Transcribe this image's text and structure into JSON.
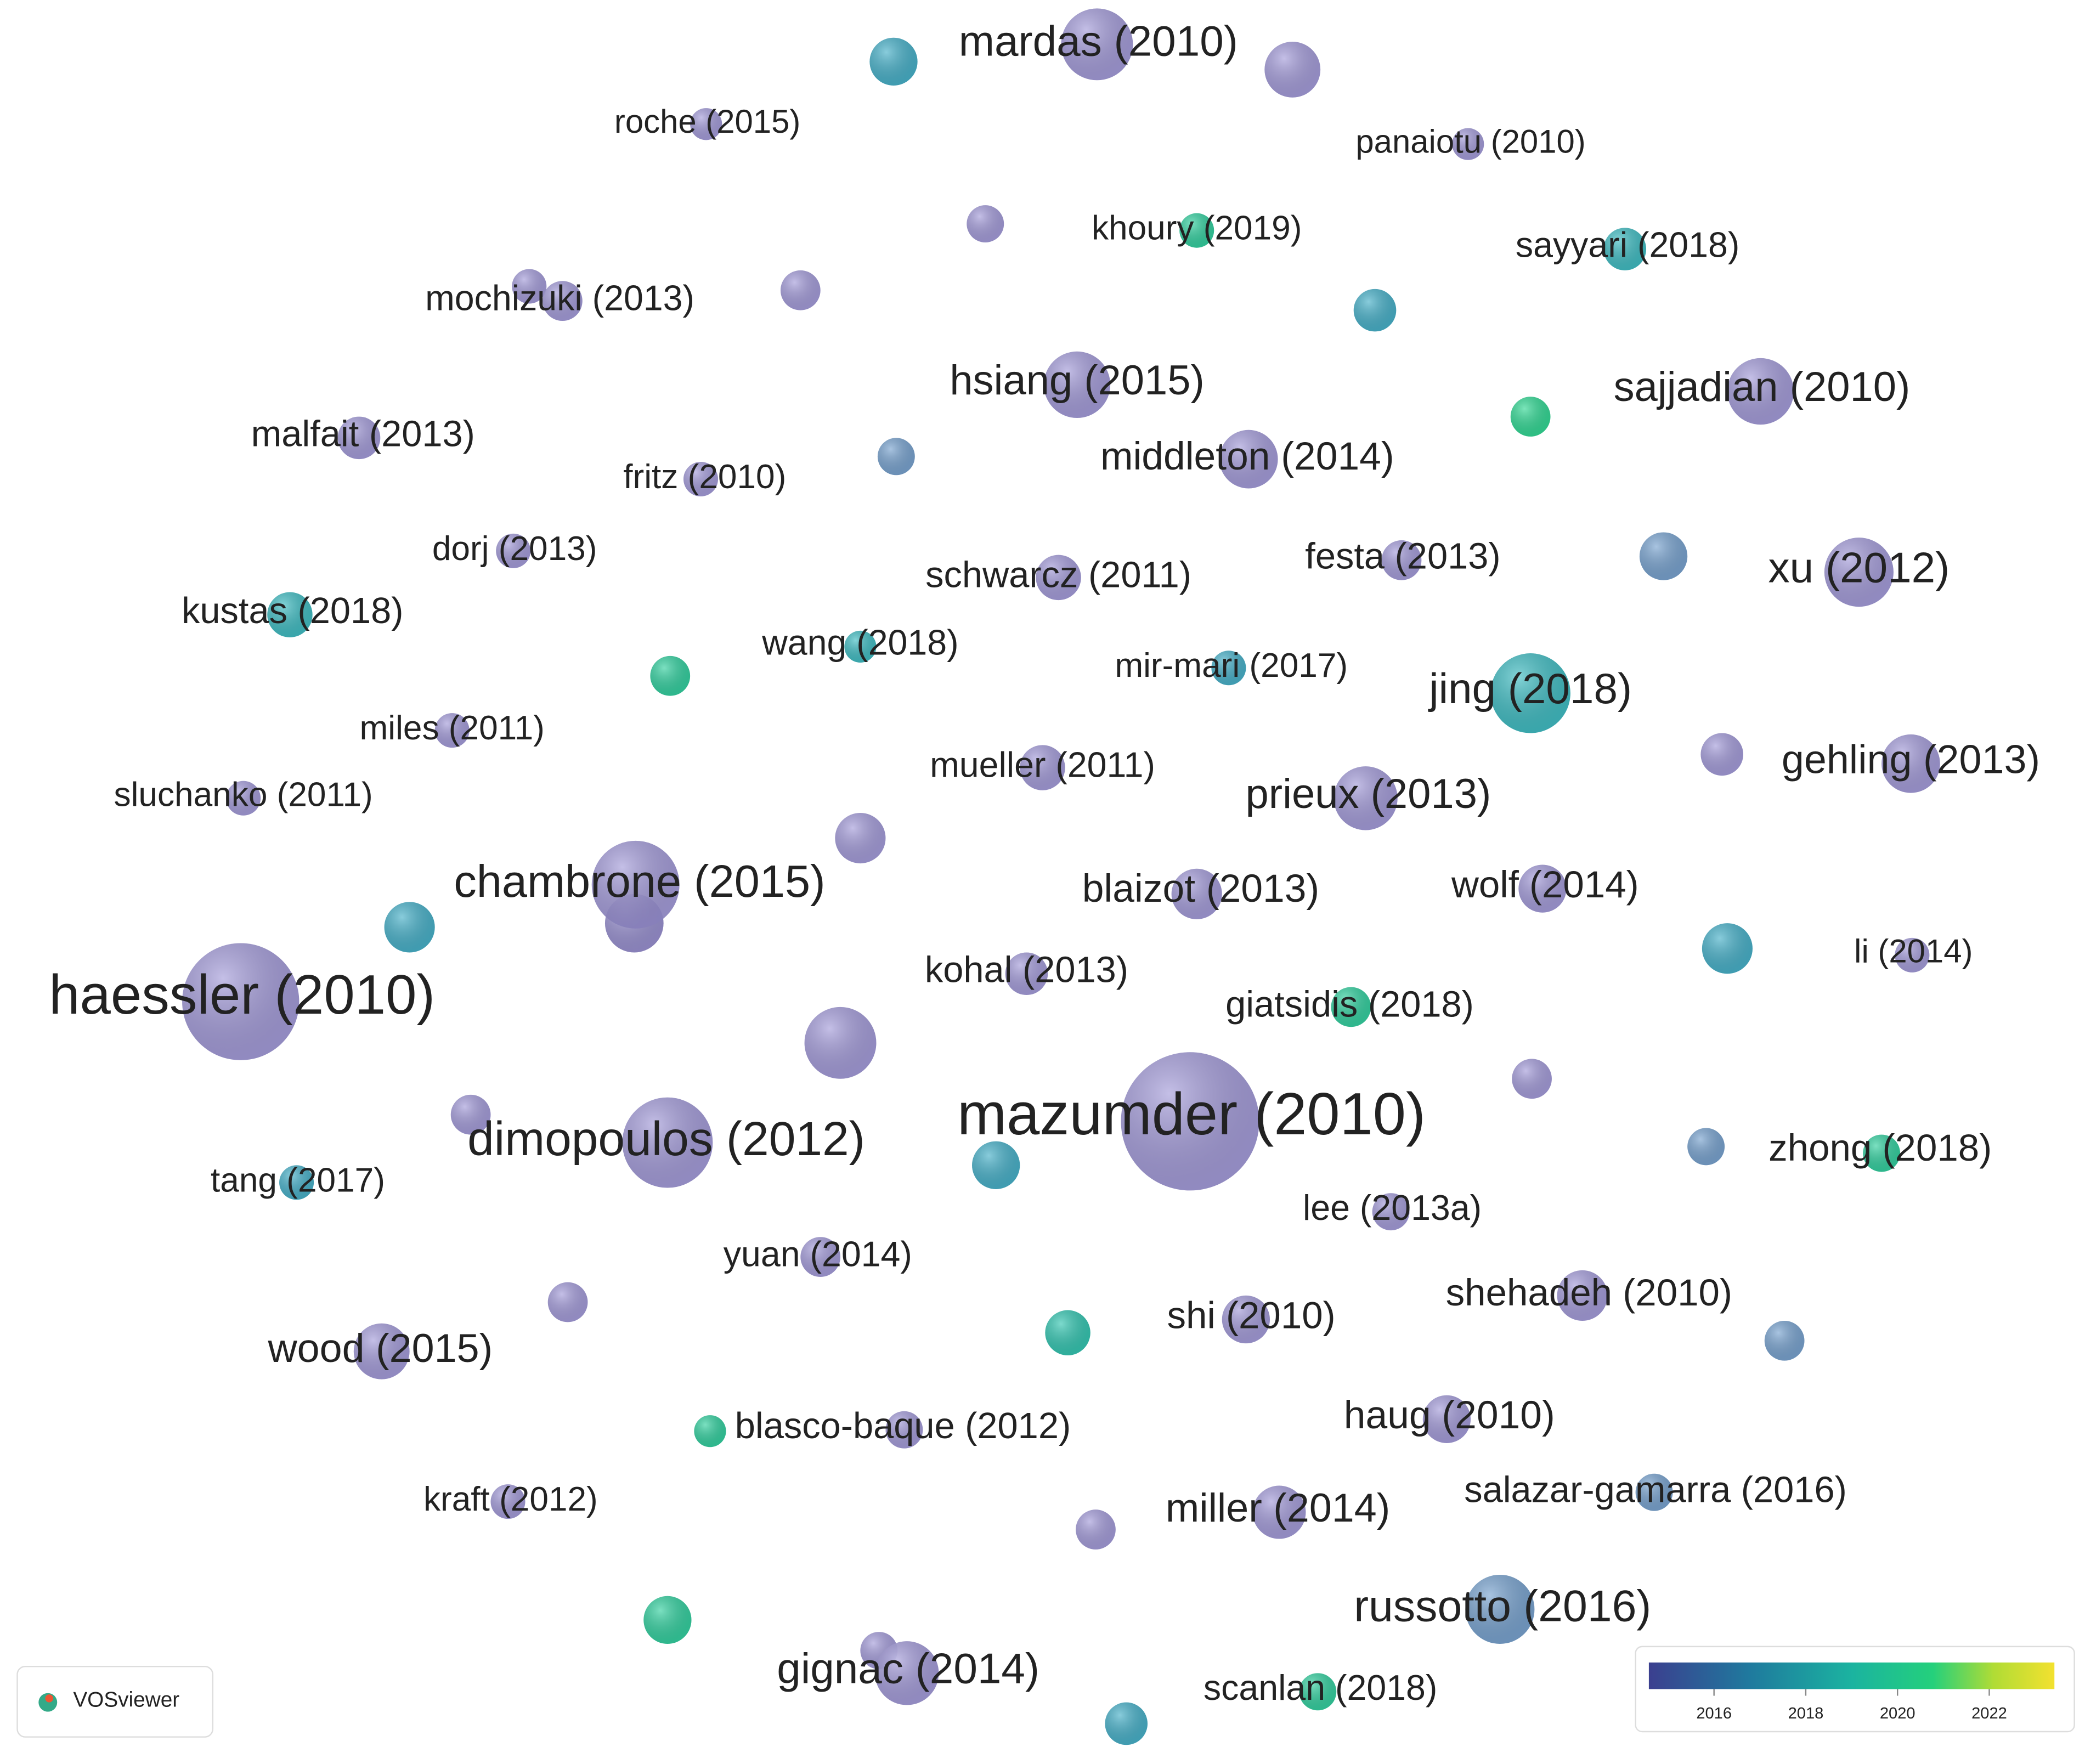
{
  "nodes": [
    {
      "label": "mardas (2010)"
    },
    {
      "label": "roche (2015)"
    },
    {
      "label": "panaiotu (2010)"
    },
    {
      "label": "khoury (2019)"
    },
    {
      "label": "sayyari (2018)"
    },
    {
      "label": "mochizuki (2013)"
    },
    {
      "label": "hsiang (2015)"
    },
    {
      "label": "sajjadian (2010)"
    },
    {
      "label": "malfait (2013)"
    },
    {
      "label": "middleton (2014)"
    },
    {
      "label": "fritz (2010)"
    },
    {
      "label": "dorj (2013)"
    },
    {
      "label": "festa (2013)"
    },
    {
      "label": "xu (2012)"
    },
    {
      "label": "schwarcz (2011)"
    },
    {
      "label": "kustas (2018)"
    },
    {
      "label": "wang (2018)"
    },
    {
      "label": "mir-mari (2017)"
    },
    {
      "label": "jing (2018)"
    },
    {
      "label": "miles (2011)"
    },
    {
      "label": "mueller (2011)"
    },
    {
      "label": "gehling (2013)"
    },
    {
      "label": "sluchanko (2011)"
    },
    {
      "label": "prieux (2013)"
    },
    {
      "label": "chambrone (2015)"
    },
    {
      "label": "blaizot (2013)"
    },
    {
      "label": "wolf (2014)"
    },
    {
      "label": "li (2014)"
    },
    {
      "label": "kohal (2013)"
    },
    {
      "label": "giatsidis (2018)"
    },
    {
      "label": "haessler (2010)"
    },
    {
      "label": "mazumder (2010)"
    },
    {
      "label": "dimopoulos (2012)"
    },
    {
      "label": "zhong (2018)"
    },
    {
      "label": "tang (2017)"
    },
    {
      "label": "lee (2013a)"
    },
    {
      "label": "yuan (2014)"
    },
    {
      "label": "shehadeh (2010)"
    },
    {
      "label": "shi (2010)"
    },
    {
      "label": "wood (2015)"
    },
    {
      "label": "haug (2010)"
    },
    {
      "label": "blasco-baque (2012)"
    },
    {
      "label": "kraft (2012)"
    },
    {
      "label": "miller (2014)"
    },
    {
      "label": "salazar-gamarra (2016)"
    },
    {
      "label": "russotto (2016)"
    },
    {
      "label": "gignac (2014)"
    },
    {
      "label": "scanlan (2018)"
    }
  ],
  "legend": {
    "ticks": [
      2016,
      2018,
      2020,
      2022
    ]
  },
  "logo": {
    "text": "VOSviewer"
  }
}
